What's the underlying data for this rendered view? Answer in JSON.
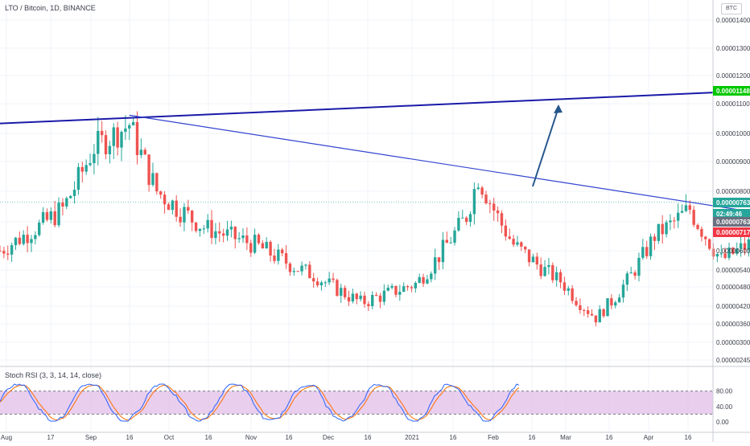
{
  "header": {
    "title": "LTO / Bitcoin, 1D, BINANCE",
    "currency_badge": "BTC"
  },
  "price_axis": {
    "ticks": [
      "0.00001400",
      "0.00001300",
      "0.00001200",
      "0.00001100",
      "0.00001000",
      "0.00000900",
      "0.00000800",
      "0.00000700",
      "0.00000600",
      "0.00000540",
      "0.00000480",
      "0.00000420",
      "0.00000360",
      "0.00000300",
      "0.00000245"
    ],
    "badges": [
      {
        "label": "0.00001148",
        "color": "#00c800",
        "text_color": "#ffffff"
      },
      {
        "label": "0.00000763",
        "color": "#26a69a",
        "text_color": "#ffffff"
      },
      {
        "label": "02:49:46",
        "color": "#26a69a",
        "text_color": "#ffffff"
      },
      {
        "label": "0.00000763",
        "color": "#6c6f7f",
        "text_color": "#ffffff"
      },
      {
        "label": "0.00000717",
        "color": "#f23645",
        "text_color": "#ffffff"
      }
    ]
  },
  "rsi": {
    "label": "Stoch RSI (3, 3, 14, 14, close)",
    "ticks": [
      "80.00",
      "40.00",
      "0.00"
    ],
    "colors": {
      "k": "#2962ff",
      "d": "#ff6d00",
      "band": "#e1bee7"
    }
  },
  "time_axis": {
    "labels": [
      "Aug",
      "17",
      "Sep",
      "16",
      "Oct",
      "16",
      "Nov",
      "16",
      "Dec",
      "16",
      "2021",
      "16",
      "Feb",
      "16",
      "Mar",
      "16",
      "Apr",
      "16"
    ]
  },
  "chart_data": {
    "type": "candlestick",
    "title": "LTO / Bitcoin, 1D, BINANCE",
    "exchange": "BINANCE",
    "interval": "1D",
    "currency": "BTC",
    "price_scale": "log",
    "price_range": [
      2.45e-06,
      1.4e-05
    ],
    "last_price": 7.63e-06,
    "countdown": "02:49:46",
    "series_shape": [
      {
        "date": "2020-08-01",
        "close": 6e-06
      },
      {
        "date": "2020-08-17",
        "close": 7.4e-06
      },
      {
        "date": "2020-08-25",
        "close": 9.5e-06
      },
      {
        "date": "2020-09-03",
        "close": 1.03e-05
      },
      {
        "date": "2020-09-10",
        "close": 8e-06
      },
      {
        "date": "2020-09-22",
        "close": 6.8e-06
      },
      {
        "date": "2020-10-05",
        "close": 6.2e-06
      },
      {
        "date": "2020-10-20",
        "close": 5.2e-06
      },
      {
        "date": "2020-11-01",
        "close": 4.3e-06
      },
      {
        "date": "2020-11-15",
        "close": 4.9e-06
      },
      {
        "date": "2020-11-28",
        "close": 7.2e-06
      },
      {
        "date": "2020-12-01",
        "close": 8.5e-06
      },
      {
        "date": "2020-12-10",
        "close": 6.2e-06
      },
      {
        "date": "2020-12-22",
        "close": 5e-06
      },
      {
        "date": "2020-12-31",
        "close": 3.8e-06
      },
      {
        "date": "2021-01-05",
        "close": 4.5e-06
      },
      {
        "date": "2021-01-15",
        "close": 6.5e-06
      },
      {
        "date": "2021-01-24",
        "close": 7.4e-06
      },
      {
        "date": "2021-02-01",
        "close": 5.7e-06
      },
      {
        "date": "2021-02-08",
        "close": 6.2e-06
      },
      {
        "date": "2021-02-14",
        "close": 7.6e-06
      }
    ],
    "trend_lines": [
      {
        "name": "rising resistance",
        "from": {
          "date": "2020-07-28",
          "price": 1.03e-05
        },
        "to": {
          "date": "2021-04-08",
          "price": 1.18e-05
        }
      },
      {
        "name": "descending resistance",
        "from": {
          "date": "2020-09-03",
          "price": 1.06e-05
        },
        "to": {
          "date": "2021-02-20",
          "price": 7.1e-06
        }
      }
    ],
    "long_position": {
      "entry": 7.63e-06,
      "target": 1.148e-05,
      "stop": 7.17e-06
    },
    "stoch_rsi": {
      "params": "3, 3, 14, 14, close",
      "upper_band": 80,
      "lower_band": 20,
      "ylim": [
        0,
        100
      ]
    }
  }
}
